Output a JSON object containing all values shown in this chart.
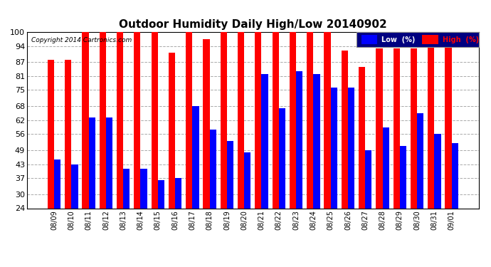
{
  "title": "Outdoor Humidity Daily High/Low 20140902",
  "copyright": "Copyright 2014 Cartronics.com",
  "labels": [
    "08/09",
    "08/10",
    "08/11",
    "08/12",
    "08/13",
    "08/14",
    "08/15",
    "08/16",
    "08/17",
    "08/18",
    "08/19",
    "08/20",
    "08/21",
    "08/22",
    "08/23",
    "08/24",
    "08/25",
    "08/26",
    "08/27",
    "08/28",
    "08/29",
    "08/30",
    "08/31",
    "09/01"
  ],
  "high": [
    88,
    88,
    100,
    100,
    100,
    100,
    100,
    91,
    100,
    97,
    100,
    100,
    100,
    100,
    100,
    100,
    100,
    92,
    85,
    93,
    93,
    93,
    100,
    95
  ],
  "low": [
    45,
    43,
    63,
    63,
    41,
    41,
    36,
    37,
    68,
    58,
    53,
    48,
    82,
    67,
    83,
    82,
    76,
    76,
    49,
    59,
    51,
    65,
    56,
    52
  ],
  "high_color": "#FF0000",
  "low_color": "#0000FF",
  "bg_color": "#FFFFFF",
  "plot_bg": "#FFFFFF",
  "grid_color": "#AAAAAA",
  "ylim_min": 24,
  "ylim_max": 100,
  "yticks": [
    24,
    30,
    37,
    43,
    49,
    56,
    62,
    68,
    75,
    81,
    87,
    94,
    100
  ],
  "title_fontsize": 11,
  "bar_bottom": 24
}
